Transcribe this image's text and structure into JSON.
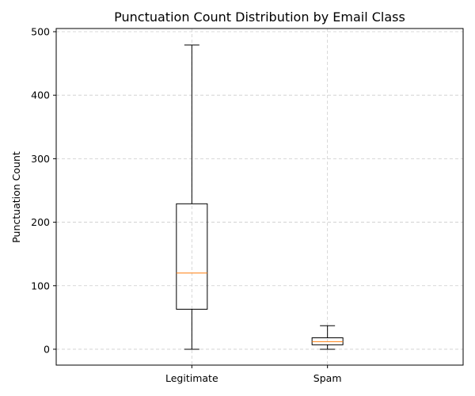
{
  "chart_data": {
    "type": "box",
    "title": "Punctuation Count Distribution by Email Class",
    "xlabel": "",
    "ylabel": "Punctuation Count",
    "ylim": [
      -25,
      505
    ],
    "yticks": [
      0,
      100,
      200,
      300,
      400,
      500
    ],
    "grid": true,
    "categories": [
      "Legitimate",
      "Spam"
    ],
    "boxes": [
      {
        "category": "Legitimate",
        "whisker_low": 0,
        "q1": 63,
        "median": 120,
        "q3": 229,
        "whisker_high": 479
      },
      {
        "category": "Spam",
        "whisker_low": 0,
        "q1": 7,
        "median": 12,
        "q3": 18,
        "whisker_high": 37
      }
    ],
    "colors": {
      "box": "#000000",
      "median": "#ff7f0e",
      "grid": "#cccccc"
    }
  }
}
